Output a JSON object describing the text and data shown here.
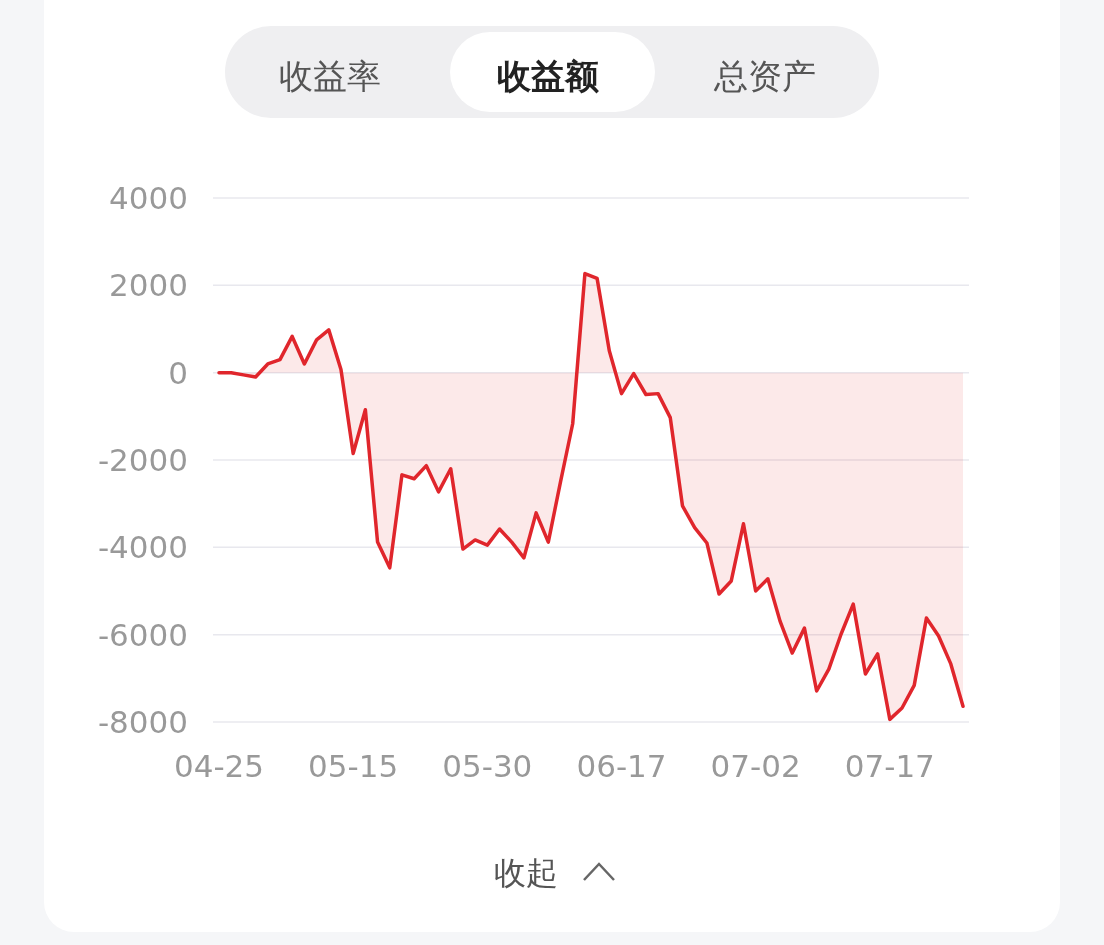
{
  "chart_data": {
    "type": "area",
    "color": "#e0262c",
    "grid": "y",
    "categories": [
      "04-25",
      null,
      null,
      null,
      null,
      null,
      null,
      null,
      null,
      null,
      null,
      "05-15",
      null,
      null,
      null,
      null,
      null,
      null,
      null,
      null,
      null,
      null,
      "05-30",
      null,
      null,
      null,
      null,
      null,
      null,
      null,
      null,
      null,
      null,
      "06-17",
      null,
      null,
      null,
      null,
      null,
      null,
      null,
      null,
      null,
      null,
      "07-02",
      null,
      null,
      null,
      null,
      null,
      null,
      null,
      null,
      null,
      null,
      "07-17",
      null,
      null,
      null,
      null,
      null,
      null
    ],
    "values": [
      0,
      0,
      -50,
      -100,
      200,
      300,
      830,
      200,
      750,
      980,
      70,
      -1850,
      -850,
      -3880,
      -4470,
      -2340,
      -2430,
      -2130,
      -2730,
      -2200,
      -4040,
      -3830,
      -3950,
      -3580,
      -3880,
      -4240,
      -3210,
      -3880,
      -2500,
      -1170,
      2270,
      2160,
      500,
      -480,
      -20,
      -500,
      -480,
      -1030,
      -3050,
      -3550,
      -3900,
      -5070,
      -4770,
      -3460,
      -5000,
      -4720,
      -5690,
      -6420,
      -5850,
      -7290,
      -6790,
      -5990,
      -5300,
      -6900,
      -6440,
      -7940,
      -7680,
      -7160,
      -5620,
      -6030,
      -6670,
      -7640
    ],
    "ylim": [
      -8000,
      4000
    ],
    "yticks": [
      -8000,
      -6000,
      -4000,
      -2000,
      0,
      2000,
      4000
    ],
    "annotations": [
      "收益率",
      "收益额",
      "总资产",
      "收起"
    ]
  }
}
